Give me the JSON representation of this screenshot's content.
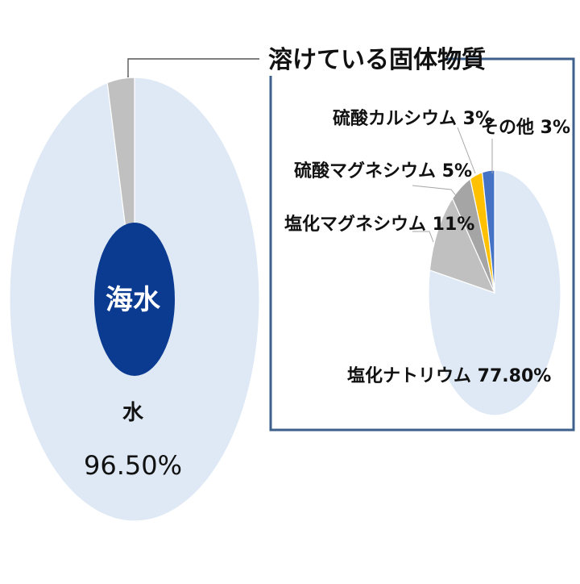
{
  "chart_data": [
    {
      "type": "pie",
      "categories": [
        "水",
        "溶けている固体物質"
      ],
      "values": [
        96.5,
        3.5
      ],
      "colors": [
        "#dee9f5",
        "#c0c0c0"
      ],
      "center_label": "海水",
      "center_color": "#0b3a91",
      "data_labels": {
        "water_name": "水",
        "water_value": "96.50%"
      }
    },
    {
      "type": "pie",
      "title": "溶けている固体物質",
      "categories": [
        "塩化ナトリウム",
        "塩化マグネシウム",
        "硫酸マグネシウム",
        "硫酸カルシウム",
        "その他"
      ],
      "values": [
        77.8,
        11,
        5,
        3,
        3
      ],
      "colors": [
        "#dee9f5",
        "#c0c0c0",
        "#a5a5a5",
        "#ffc000",
        "#4472c4"
      ],
      "labels": [
        "塩化ナトリウム 77.80%",
        "塩化マグネシウム 11%",
        "硫酸マグネシウム 5%",
        "硫酸カルシウム 3%",
        "その他 3%"
      ],
      "frame_color": "#3c5f8c"
    }
  ]
}
